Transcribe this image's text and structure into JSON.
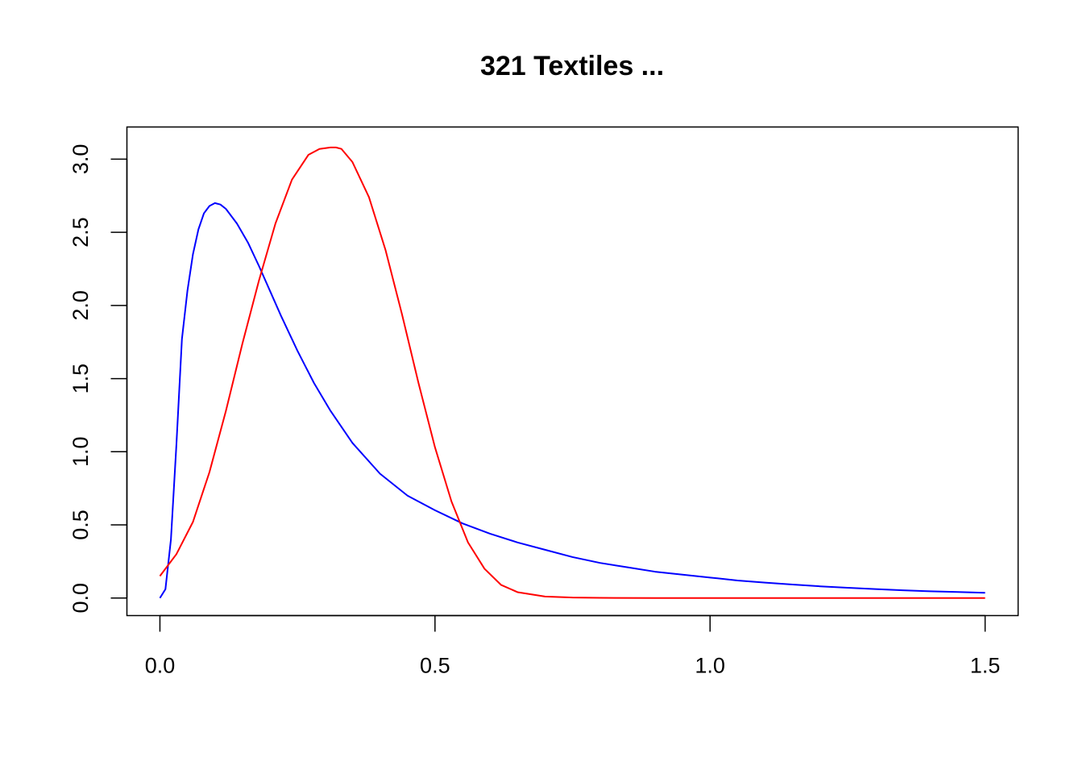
{
  "chart_data": {
    "type": "line",
    "title": "321 Textiles ...",
    "xlabel": "",
    "ylabel": "",
    "xlim": [
      -0.06,
      1.56
    ],
    "ylim": [
      -0.12,
      3.22
    ],
    "x_ticks": [
      0.0,
      0.5,
      1.0,
      1.5
    ],
    "x_tick_labels": [
      "0.0",
      "0.5",
      "1.0",
      "1.5"
    ],
    "y_ticks": [
      0.0,
      0.5,
      1.0,
      1.5,
      2.0,
      2.5,
      3.0
    ],
    "y_tick_labels": [
      "0.0",
      "0.5",
      "1.0",
      "1.5",
      "2.0",
      "2.5",
      "3.0"
    ],
    "grid": false,
    "legend": "none",
    "series": [
      {
        "color": "#0000ff",
        "x": [
          0.0,
          0.01,
          0.02,
          0.03,
          0.04,
          0.05,
          0.06,
          0.07,
          0.08,
          0.09,
          0.1,
          0.11,
          0.12,
          0.14,
          0.16,
          0.18,
          0.2,
          0.22,
          0.25,
          0.28,
          0.31,
          0.35,
          0.4,
          0.45,
          0.5,
          0.55,
          0.6,
          0.65,
          0.7,
          0.75,
          0.8,
          0.85,
          0.9,
          0.95,
          1.0,
          1.05,
          1.1,
          1.15,
          1.2,
          1.25,
          1.3,
          1.35,
          1.4,
          1.45,
          1.5
        ],
        "y": [
          0.0,
          0.06,
          0.4,
          1.05,
          1.77,
          2.1,
          2.35,
          2.52,
          2.63,
          2.68,
          2.7,
          2.69,
          2.66,
          2.56,
          2.43,
          2.27,
          2.1,
          1.93,
          1.69,
          1.47,
          1.28,
          1.06,
          0.85,
          0.7,
          0.6,
          0.51,
          0.44,
          0.38,
          0.33,
          0.28,
          0.24,
          0.21,
          0.18,
          0.16,
          0.14,
          0.12,
          0.105,
          0.092,
          0.08,
          0.07,
          0.061,
          0.053,
          0.046,
          0.041,
          0.036
        ]
      },
      {
        "color": "#ff0000",
        "x": [
          0.0,
          0.03,
          0.06,
          0.09,
          0.12,
          0.15,
          0.18,
          0.21,
          0.24,
          0.27,
          0.29,
          0.31,
          0.32,
          0.33,
          0.35,
          0.38,
          0.41,
          0.44,
          0.47,
          0.5,
          0.53,
          0.56,
          0.59,
          0.62,
          0.65,
          0.7,
          0.75,
          0.8,
          0.9,
          1.0,
          1.2,
          1.5
        ],
        "y": [
          0.15,
          0.3,
          0.52,
          0.86,
          1.28,
          1.74,
          2.17,
          2.56,
          2.86,
          3.03,
          3.07,
          3.08,
          3.08,
          3.07,
          2.98,
          2.74,
          2.38,
          1.94,
          1.47,
          1.03,
          0.66,
          0.38,
          0.2,
          0.09,
          0.04,
          0.01,
          0.003,
          0.001,
          0.0,
          0.0,
          0.0,
          0.0
        ]
      }
    ]
  }
}
